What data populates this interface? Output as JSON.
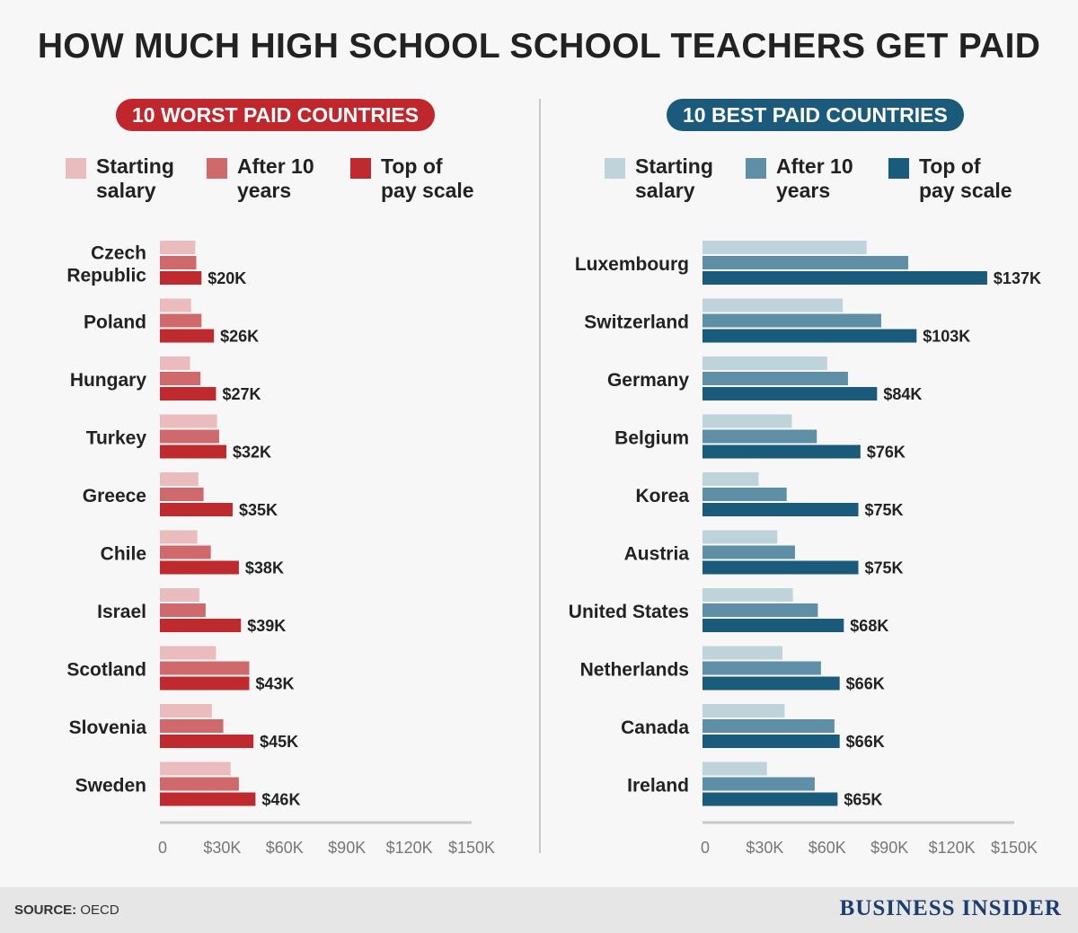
{
  "title": "HOW MUCH HIGH SCHOOL SCHOOL TEACHERS GET PAID",
  "source_label": "SOURCE:",
  "source_value": "OECD",
  "brand": "BUSINESS INSIDER",
  "chart_data": [
    {
      "type": "bar",
      "orientation": "horizontal",
      "title": "10 WORST PAID COUNTRIES",
      "legend": [
        "Starting salary",
        "After 10 years",
        "Top of pay scale"
      ],
      "legend_lines": [
        [
          "Starting",
          "salary"
        ],
        [
          "After 10",
          "years"
        ],
        [
          "Top of",
          "pay scale"
        ]
      ],
      "colors": [
        "#ebbcbd",
        "#d0696b",
        "#be2a2e"
      ],
      "badge_color": "#c0272d",
      "categories": [
        "Czech Republic",
        "Poland",
        "Hungary",
        "Turkey",
        "Greece",
        "Chile",
        "Israel",
        "Scotland",
        "Slovenia",
        "Sweden"
      ],
      "category_lines": [
        [
          "Czech",
          "Republic"
        ],
        [
          "Poland"
        ],
        [
          "Hungary"
        ],
        [
          "Turkey"
        ],
        [
          "Greece"
        ],
        [
          "Chile"
        ],
        [
          "Israel"
        ],
        [
          "Scotland"
        ],
        [
          "Slovenia"
        ],
        [
          "Sweden"
        ]
      ],
      "series": [
        {
          "name": "Starting salary",
          "values": [
            17,
            15,
            14.5,
            27.5,
            18.5,
            18,
            19,
            27,
            25,
            34
          ]
        },
        {
          "name": "After 10 years",
          "values": [
            17.5,
            20,
            19.5,
            28.5,
            21,
            24.5,
            22,
            43,
            30.5,
            38
          ]
        },
        {
          "name": "Top of pay scale",
          "values": [
            20,
            26,
            27,
            32,
            35,
            38,
            39,
            43,
            45,
            46
          ]
        }
      ],
      "value_labels": [
        "$20K",
        "$26K",
        "$27K",
        "$32K",
        "$35K",
        "$38K",
        "$39K",
        "$43K",
        "$45K",
        "$46K"
      ],
      "xlim": [
        0,
        150
      ],
      "xticks": [
        0,
        30,
        60,
        90,
        120,
        150
      ],
      "xtick_labels": [
        "0",
        "$30K",
        "$60K",
        "$90K",
        "$120K",
        "$150K"
      ]
    },
    {
      "type": "bar",
      "orientation": "horizontal",
      "title": "10 BEST PAID COUNTRIES",
      "legend": [
        "Starting salary",
        "After 10 years",
        "Top of pay scale"
      ],
      "legend_lines": [
        [
          "Starting",
          "salary"
        ],
        [
          "After 10",
          "years"
        ],
        [
          "Top of",
          "pay scale"
        ]
      ],
      "colors": [
        "#bfd3db",
        "#5f8fa6",
        "#1a5a7a"
      ],
      "badge_color": "#1b5a7a",
      "categories": [
        "Luxembourg",
        "Switzerland",
        "Germany",
        "Belgium",
        "Korea",
        "Austria",
        "United States",
        "Netherlands",
        "Canada",
        "Ireland"
      ],
      "category_lines": [
        [
          "Luxembourg"
        ],
        [
          "Switzerland"
        ],
        [
          "Germany"
        ],
        [
          "Belgium"
        ],
        [
          "Korea"
        ],
        [
          "Austria"
        ],
        [
          "United States"
        ],
        [
          "Netherlands"
        ],
        [
          "Canada"
        ],
        [
          "Ireland"
        ]
      ],
      "series": [
        {
          "name": "Starting salary",
          "values": [
            79,
            67.5,
            60,
            43,
            27,
            36,
            43.5,
            38.5,
            39.5,
            31
          ]
        },
        {
          "name": "After 10 years",
          "values": [
            99,
            86,
            70,
            55,
            40.5,
            44.5,
            55.5,
            57,
            63.5,
            54
          ]
        },
        {
          "name": "Top of pay scale",
          "values": [
            137,
            103,
            84,
            76,
            75,
            75,
            68,
            66,
            66,
            65
          ]
        }
      ],
      "value_labels": [
        "$137K",
        "$103K",
        "$84K",
        "$76K",
        "$75K",
        "$75K",
        "$68K",
        "$66K",
        "$66K",
        "$65K"
      ],
      "xlim": [
        0,
        150
      ],
      "xticks": [
        0,
        30,
        60,
        90,
        120,
        150
      ],
      "xtick_labels": [
        "0",
        "$30K",
        "$60K",
        "$90K",
        "$120K",
        "$150K"
      ]
    }
  ]
}
